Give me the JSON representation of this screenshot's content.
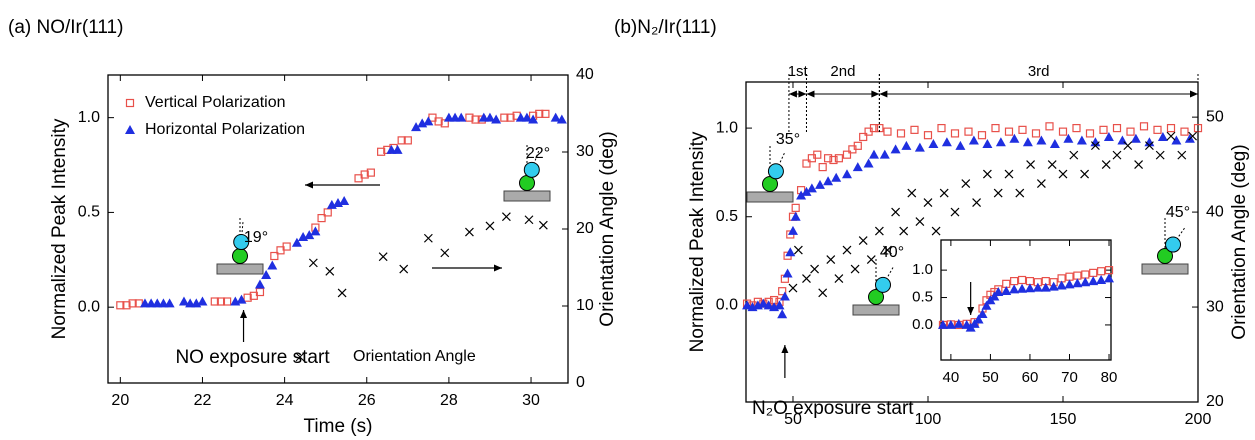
{
  "chart_data": [
    {
      "type": "scatter",
      "title": "(a) NO/Ir(111)",
      "xlabel": "Time (s)",
      "ylabel": "Normalized Peak Intensity",
      "y2label": "Orientation Angle (deg)",
      "xlim": [
        19.7,
        30.9
      ],
      "xticks": [
        20,
        22,
        24,
        26,
        28,
        30
      ],
      "ylim": [
        -0.4,
        1.225
      ],
      "yticks": [
        {
          "value": 0,
          "label": "0.0"
        },
        {
          "value": 0.5,
          "label": "0.5"
        },
        {
          "value": 1,
          "label": "1.0"
        }
      ],
      "y2lim": [
        0,
        40
      ],
      "y2ticks": [
        0,
        10,
        20,
        30,
        40
      ],
      "series": [
        {
          "name": "Vertical Polarization",
          "color": "#e8504a",
          "marker": "square",
          "x": [
            20.0,
            20.15,
            20.3,
            20.45,
            22.3,
            22.45,
            22.6,
            23.1,
            23.25,
            23.4,
            23.75,
            23.9,
            24.05,
            24.75,
            24.9,
            25.05,
            25.8,
            25.95,
            26.1,
            26.35,
            26.5,
            26.65,
            26.85,
            27.0,
            27.6,
            27.75,
            27.9,
            28.5,
            28.65,
            28.8,
            29.35,
            29.5,
            29.65,
            30.05,
            30.2,
            30.35
          ],
          "values": [
            0.01,
            0.01,
            0.02,
            0.02,
            0.03,
            0.03,
            0.03,
            0.05,
            0.06,
            0.08,
            0.27,
            0.3,
            0.32,
            0.42,
            0.47,
            0.5,
            0.68,
            0.7,
            0.71,
            0.82,
            0.83,
            0.84,
            0.88,
            0.88,
            1.0,
            0.98,
            0.97,
            1.0,
            0.99,
            0.99,
            1.0,
            1.0,
            1.01,
            1.01,
            1.02,
            1.02
          ]
        },
        {
          "name": "Horizontal Polarization",
          "color": "#1f2fe0",
          "marker": "triangle",
          "x": [
            20.6,
            20.75,
            20.9,
            21.05,
            21.2,
            21.55,
            21.7,
            21.85,
            22.0,
            22.8,
            22.95,
            23.4,
            23.55,
            23.7,
            24.3,
            24.45,
            24.6,
            24.75,
            25.15,
            25.3,
            25.45,
            26.6,
            26.75,
            27.2,
            27.35,
            27.5,
            28.0,
            28.15,
            28.3,
            28.85,
            29.0,
            29.15,
            29.75,
            29.9,
            30.05,
            30.6,
            30.75
          ],
          "values": [
            0.02,
            0.02,
            0.02,
            0.02,
            0.02,
            0.03,
            0.02,
            0.02,
            0.03,
            0.03,
            0.04,
            0.12,
            0.17,
            0.22,
            0.34,
            0.37,
            0.38,
            0.4,
            0.54,
            0.55,
            0.56,
            0.83,
            0.83,
            0.95,
            0.97,
            0.98,
            1.0,
            1.0,
            1.0,
            1.0,
            1.0,
            0.99,
            1.0,
            1.0,
            0.99,
            1.0,
            0.99
          ]
        },
        {
          "name": "Orientation Angle",
          "color": "#000000",
          "marker": "x",
          "axis": "y2",
          "x": [
            24.7,
            25.1,
            25.4,
            26.4,
            26.9,
            27.5,
            27.9,
            28.5,
            29.0,
            29.4,
            29.95,
            30.3
          ],
          "values": [
            15.6,
            14.5,
            11.7,
            16.4,
            14.8,
            18.8,
            16.9,
            19.6,
            20.4,
            21.6,
            21.2,
            20.5
          ]
        }
      ],
      "annotations": [
        {
          "text": "NO exposure start",
          "x": 23
        },
        {
          "text": "19°"
        },
        {
          "text": "22°"
        }
      ]
    },
    {
      "type": "scatter",
      "title": "(b)N₂/Ir(111)",
      "ylabel": "Normalized Peak Intensity",
      "y2label": "Orientation Angle (deg)",
      "xlim": [
        32.6,
        200
      ],
      "xticks": [
        50,
        100,
        150,
        200
      ],
      "ylim": [
        -0.545,
        1.26
      ],
      "yticks": [
        {
          "value": 0,
          "label": "0.0"
        },
        {
          "value": 0.5,
          "label": "0.5"
        },
        {
          "value": 1,
          "label": "1.0"
        }
      ],
      "y2lim": [
        20,
        53.7
      ],
      "y2ticks": [
        20,
        30,
        40,
        50
      ],
      "series": [
        {
          "color": "#e8504a",
          "marker": "square",
          "x": [
            33,
            35,
            37,
            39,
            41,
            43,
            45,
            46,
            47,
            48,
            49,
            50,
            51,
            53,
            55,
            57,
            59,
            61,
            63,
            65,
            67,
            70,
            72,
            74,
            76,
            78,
            80,
            82,
            85,
            90,
            95,
            100,
            105,
            110,
            115,
            120,
            125,
            130,
            135,
            140,
            145,
            150,
            155,
            160,
            165,
            170,
            175,
            180,
            185,
            190,
            195,
            200
          ],
          "values": [
            0.01,
            0.0,
            0.02,
            0.01,
            0.02,
            0.03,
            0.02,
            0.08,
            0.15,
            0.28,
            0.4,
            0.5,
            0.55,
            0.65,
            0.8,
            0.83,
            0.85,
            0.78,
            0.83,
            0.82,
            0.83,
            0.85,
            0.88,
            0.9,
            0.95,
            0.98,
            1.0,
            1.0,
            0.98,
            0.97,
            0.99,
            0.96,
            1.0,
            0.97,
            0.98,
            0.96,
            1.0,
            0.98,
            0.99,
            0.97,
            1.01,
            0.98,
            1.0,
            0.97,
            0.99,
            1.0,
            0.98,
            1.01,
            0.99,
            1.0,
            0.98,
            1.0
          ]
        },
        {
          "color": "#1f2fe0",
          "marker": "triangle",
          "x": [
            33,
            35,
            37,
            39,
            41,
            43,
            45,
            46,
            47,
            48,
            49,
            50,
            51,
            53,
            55,
            57,
            60,
            63,
            66,
            70,
            74,
            78,
            80,
            84,
            88,
            92,
            97,
            102,
            107,
            112,
            117,
            122,
            127,
            132,
            137,
            142,
            147,
            152,
            157,
            162,
            167,
            172,
            177,
            182,
            187,
            192,
            197
          ],
          "values": [
            0.0,
            -0.01,
            0.0,
            0.01,
            0.0,
            -0.01,
            0.0,
            -0.05,
            0.05,
            0.18,
            0.3,
            0.42,
            0.5,
            0.62,
            0.64,
            0.66,
            0.68,
            0.7,
            0.72,
            0.74,
            0.78,
            0.8,
            0.85,
            0.85,
            0.88,
            0.9,
            0.89,
            0.91,
            0.92,
            0.9,
            0.93,
            0.91,
            0.92,
            0.94,
            0.92,
            0.93,
            0.91,
            0.94,
            0.93,
            0.92,
            0.95,
            0.93,
            0.94,
            0.92,
            0.95,
            0.93,
            0.94
          ]
        },
        {
          "color": "#000000",
          "marker": "x",
          "axis": "y2",
          "x": [
            50,
            52,
            55,
            58,
            61,
            64,
            67,
            70,
            73,
            76,
            79,
            82,
            85,
            88,
            91,
            94,
            97,
            100,
            103,
            106,
            110,
            114,
            118,
            122,
            126,
            130,
            134,
            138,
            142,
            146,
            150,
            154,
            158,
            162,
            166,
            170,
            174,
            178,
            182,
            186,
            190,
            194,
            198
          ],
          "values": [
            32,
            36,
            33,
            34,
            31.5,
            35,
            33,
            36,
            34,
            37,
            35,
            38,
            36,
            40,
            38,
            42,
            39,
            41,
            38,
            42,
            40,
            43,
            41,
            44,
            42,
            44,
            42,
            45,
            43,
            45,
            44,
            46,
            44,
            47,
            45,
            46,
            47,
            45,
            47,
            46,
            48,
            46,
            48
          ]
        }
      ],
      "annotations": [
        {
          "text": "N₂O exposure start",
          "x": 47
        },
        {
          "text": "35°"
        },
        {
          "text": "40°"
        },
        {
          "text": "45°"
        }
      ],
      "phases": [
        {
          "label": "1st",
          "x": [
            48.5,
            55
          ]
        },
        {
          "label": "2nd",
          "x": [
            55,
            82
          ]
        },
        {
          "label": "3rd",
          "x": [
            82,
            200
          ]
        }
      ]
    },
    {
      "type": "scatter",
      "xlim": [
        37.5,
        80.5
      ],
      "xticks": [
        40,
        50,
        60,
        70,
        80
      ],
      "ylim": [
        -0.64,
        1.55
      ],
      "yticks": [
        {
          "value": 0,
          "label": "0.0"
        },
        {
          "value": 0.5,
          "label": "0.5"
        },
        {
          "value": 1,
          "label": "1.0"
        }
      ],
      "series": [
        {
          "color": "#e8504a",
          "marker": "square",
          "x": [
            38,
            40,
            42,
            44,
            46,
            48,
            49,
            50,
            51,
            52,
            54,
            56,
            58,
            60,
            62,
            64,
            66,
            68,
            70,
            72,
            74,
            76,
            78,
            80
          ],
          "values": [
            0.0,
            0.01,
            0.0,
            0.02,
            0.05,
            0.3,
            0.45,
            0.55,
            0.6,
            0.65,
            0.75,
            0.8,
            0.82,
            0.8,
            0.78,
            0.8,
            0.78,
            0.85,
            0.88,
            0.9,
            0.92,
            0.95,
            0.98,
            1.0
          ]
        },
        {
          "color": "#1f2fe0",
          "marker": "triangle",
          "x": [
            38,
            40,
            42,
            44,
            45,
            46,
            47,
            48,
            49,
            50,
            51,
            52,
            54,
            56,
            58,
            60,
            62,
            64,
            66,
            68,
            70,
            72,
            74,
            76,
            78,
            80
          ],
          "values": [
            0.0,
            0.0,
            0.02,
            0.0,
            -0.05,
            0.02,
            0.1,
            0.2,
            0.35,
            0.45,
            0.52,
            0.6,
            0.62,
            0.65,
            0.66,
            0.67,
            0.68,
            0.68,
            0.7,
            0.72,
            0.74,
            0.76,
            0.78,
            0.8,
            0.82,
            0.85
          ]
        }
      ],
      "arrow_x": 45
    }
  ]
}
